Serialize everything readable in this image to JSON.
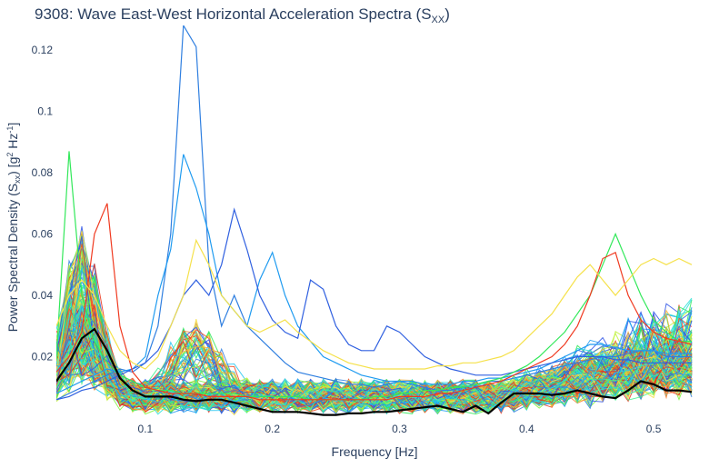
{
  "chart_data": {
    "type": "line",
    "title": {
      "main": "9308: Wave East-West Horizontal Acceleration Spectra (S",
      "sub": "XX",
      "close": ")"
    },
    "xlabel": "Frequency [Hz]",
    "ylabel": {
      "main": "Power Spectral Density (S",
      "sub": "xx",
      "mid": ") [g",
      "sup1": "2",
      "mid2": " Hz",
      "sup2": "-1",
      "close": "]"
    },
    "xlim": [
      0.03,
      0.535
    ],
    "ylim": [
      0,
      0.128
    ],
    "x_ticks": [
      0.1,
      0.2,
      0.3,
      0.4,
      0.5
    ],
    "x_tick_labels": [
      "0.1",
      "0.2",
      "0.3",
      "0.4",
      "0.5"
    ],
    "y_ticks": [
      0.02,
      0.04,
      0.06,
      0.08,
      0.1,
      0.12
    ],
    "y_tick_labels": [
      "0.02",
      "0.04",
      "0.06",
      "0.08",
      "0.1",
      "0.12"
    ],
    "grid": false,
    "legend": "none",
    "x": [
      0.03,
      0.04,
      0.05,
      0.06,
      0.07,
      0.08,
      0.09,
      0.1,
      0.11,
      0.12,
      0.13,
      0.14,
      0.15,
      0.16,
      0.17,
      0.18,
      0.19,
      0.2,
      0.21,
      0.22,
      0.23,
      0.24,
      0.25,
      0.26,
      0.27,
      0.28,
      0.29,
      0.3,
      0.31,
      0.32,
      0.33,
      0.34,
      0.35,
      0.36,
      0.37,
      0.38,
      0.39,
      0.4,
      0.41,
      0.42,
      0.43,
      0.44,
      0.45,
      0.46,
      0.47,
      0.48,
      0.49,
      0.5,
      0.51,
      0.52,
      0.53
    ],
    "mean_series": {
      "color": "#000000",
      "values": [
        0.012,
        0.018,
        0.026,
        0.029,
        0.022,
        0.013,
        0.009,
        0.007,
        0.007,
        0.007,
        0.006,
        0.0055,
        0.006,
        0.006,
        0.005,
        0.004,
        0.003,
        0.002,
        0.002,
        0.002,
        0.0015,
        0.001,
        0.001,
        0.0015,
        0.0015,
        0.002,
        0.002,
        0.0025,
        0.003,
        0.0035,
        0.004,
        0.003,
        0.002,
        0.004,
        0.0015,
        0.005,
        0.008,
        0.008,
        0.008,
        0.0075,
        0.008,
        0.009,
        0.008,
        0.007,
        0.0065,
        0.009,
        0.012,
        0.011,
        0.009,
        0.009,
        0.0085
      ]
    },
    "highlight_series": [
      {
        "color": "#2f7fe0",
        "values": [
          0.006,
          0.008,
          0.01,
          0.012,
          0.014,
          0.016,
          0.015,
          0.018,
          0.03,
          0.06,
          0.128,
          0.121,
          0.05,
          0.03,
          0.04,
          0.03,
          0.026,
          0.022,
          0.018,
          0.015,
          0.014,
          0.013,
          0.012,
          0.011,
          0.011,
          0.01,
          0.011,
          0.012,
          0.011,
          0.01,
          0.009,
          0.009,
          0.01,
          0.011,
          0.012,
          0.012,
          0.013,
          0.014,
          0.015,
          0.016,
          0.017,
          0.018,
          0.019,
          0.02,
          0.02,
          0.021,
          0.022,
          0.022,
          0.02,
          0.02,
          0.02
        ]
      },
      {
        "color": "#1f9bf0",
        "values": [
          0.008,
          0.01,
          0.012,
          0.014,
          0.016,
          0.015,
          0.016,
          0.02,
          0.04,
          0.055,
          0.086,
          0.075,
          0.06,
          0.04,
          0.035,
          0.03,
          0.045,
          0.054,
          0.04,
          0.03,
          0.025,
          0.02,
          0.018,
          0.016,
          0.014,
          0.013,
          0.012,
          0.012,
          0.012,
          0.011,
          0.011,
          0.011,
          0.012,
          0.012,
          0.013,
          0.013,
          0.014,
          0.015,
          0.016,
          0.018,
          0.02,
          0.022,
          0.024,
          0.024,
          0.023,
          0.022,
          0.022,
          0.022,
          0.021,
          0.021,
          0.021
        ]
      },
      {
        "color": "#3060e0",
        "values": [
          0.006,
          0.007,
          0.009,
          0.01,
          0.012,
          0.014,
          0.016,
          0.018,
          0.022,
          0.03,
          0.04,
          0.045,
          0.04,
          0.05,
          0.068,
          0.055,
          0.04,
          0.032,
          0.028,
          0.026,
          0.045,
          0.042,
          0.03,
          0.024,
          0.022,
          0.022,
          0.03,
          0.028,
          0.024,
          0.02,
          0.018,
          0.016,
          0.015,
          0.014,
          0.014,
          0.014,
          0.015,
          0.016,
          0.017,
          0.018,
          0.019,
          0.02,
          0.02,
          0.02,
          0.019,
          0.019,
          0.018,
          0.018,
          0.018,
          0.018,
          0.018
        ]
      },
      {
        "color": "#32e85a",
        "values": [
          0.02,
          0.087,
          0.04,
          0.025,
          0.018,
          0.014,
          0.012,
          0.01,
          0.009,
          0.009,
          0.008,
          0.008,
          0.008,
          0.008,
          0.008,
          0.007,
          0.007,
          0.007,
          0.007,
          0.007,
          0.006,
          0.006,
          0.006,
          0.006,
          0.006,
          0.007,
          0.007,
          0.008,
          0.008,
          0.009,
          0.009,
          0.01,
          0.01,
          0.011,
          0.012,
          0.013,
          0.015,
          0.017,
          0.02,
          0.024,
          0.028,
          0.034,
          0.04,
          0.05,
          0.06,
          0.05,
          0.04,
          0.032,
          0.028,
          0.025,
          0.025
        ]
      },
      {
        "color": "#f03a20",
        "values": [
          0.015,
          0.02,
          0.028,
          0.06,
          0.07,
          0.03,
          0.015,
          0.01,
          0.009,
          0.008,
          0.008,
          0.008,
          0.007,
          0.007,
          0.007,
          0.007,
          0.006,
          0.006,
          0.006,
          0.006,
          0.006,
          0.006,
          0.006,
          0.006,
          0.006,
          0.006,
          0.006,
          0.007,
          0.007,
          0.007,
          0.008,
          0.008,
          0.009,
          0.01,
          0.011,
          0.012,
          0.014,
          0.016,
          0.018,
          0.02,
          0.024,
          0.03,
          0.04,
          0.052,
          0.054,
          0.04,
          0.032,
          0.028,
          0.026,
          0.025,
          0.024
        ]
      },
      {
        "color": "#f5e14a",
        "values": [
          0.03,
          0.04,
          0.045,
          0.04,
          0.03,
          0.022,
          0.018,
          0.016,
          0.02,
          0.03,
          0.04,
          0.058,
          0.05,
          0.04,
          0.035,
          0.03,
          0.028,
          0.03,
          0.032,
          0.028,
          0.025,
          0.022,
          0.02,
          0.018,
          0.017,
          0.016,
          0.016,
          0.016,
          0.016,
          0.016,
          0.017,
          0.017,
          0.018,
          0.018,
          0.019,
          0.02,
          0.022,
          0.026,
          0.03,
          0.034,
          0.04,
          0.046,
          0.05,
          0.045,
          0.04,
          0.045,
          0.05,
          0.052,
          0.05,
          0.052,
          0.05
        ]
      }
    ],
    "background_family": {
      "count": 230,
      "colormap": "rainbow",
      "colors": [
        "#2f55e6",
        "#2f7fe0",
        "#1f9bf0",
        "#22c6f0",
        "#2ae0d6",
        "#3ef28c",
        "#32e85a",
        "#7cf23c",
        "#bff23a",
        "#f5e14a",
        "#f8b03a",
        "#f57a2a",
        "#f0461e",
        "#e8331a"
      ]
    }
  }
}
